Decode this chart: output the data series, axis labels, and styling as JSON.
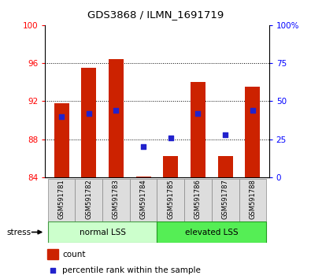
{
  "title": "GDS3868 / ILMN_1691719",
  "samples": [
    "GSM591781",
    "GSM591782",
    "GSM591783",
    "GSM591784",
    "GSM591785",
    "GSM591786",
    "GSM591787",
    "GSM591788"
  ],
  "bar_values": [
    91.8,
    95.5,
    96.4,
    84.1,
    86.2,
    94.0,
    86.2,
    93.5
  ],
  "bar_bottom": 84.0,
  "blue_pct": [
    40,
    42,
    44,
    20,
    26,
    42,
    28,
    44
  ],
  "ylim_left": [
    84,
    100
  ],
  "ylim_right": [
    0,
    100
  ],
  "yticks_left": [
    84,
    88,
    92,
    96,
    100
  ],
  "yticks_right": [
    0,
    25,
    50,
    75,
    100
  ],
  "ytick_labels_right": [
    "0",
    "25",
    "50",
    "75",
    "100%"
  ],
  "group1_label": "normal LSS",
  "group2_label": "elevated LSS",
  "group1_color": "#ccffcc",
  "group2_color": "#55ee55",
  "stress_label": "stress",
  "bar_color": "#cc2200",
  "blue_color": "#2222cc",
  "legend_count": "count",
  "legend_pct": "percentile rank within the sample",
  "gridline_ticks": [
    88,
    92,
    96
  ]
}
